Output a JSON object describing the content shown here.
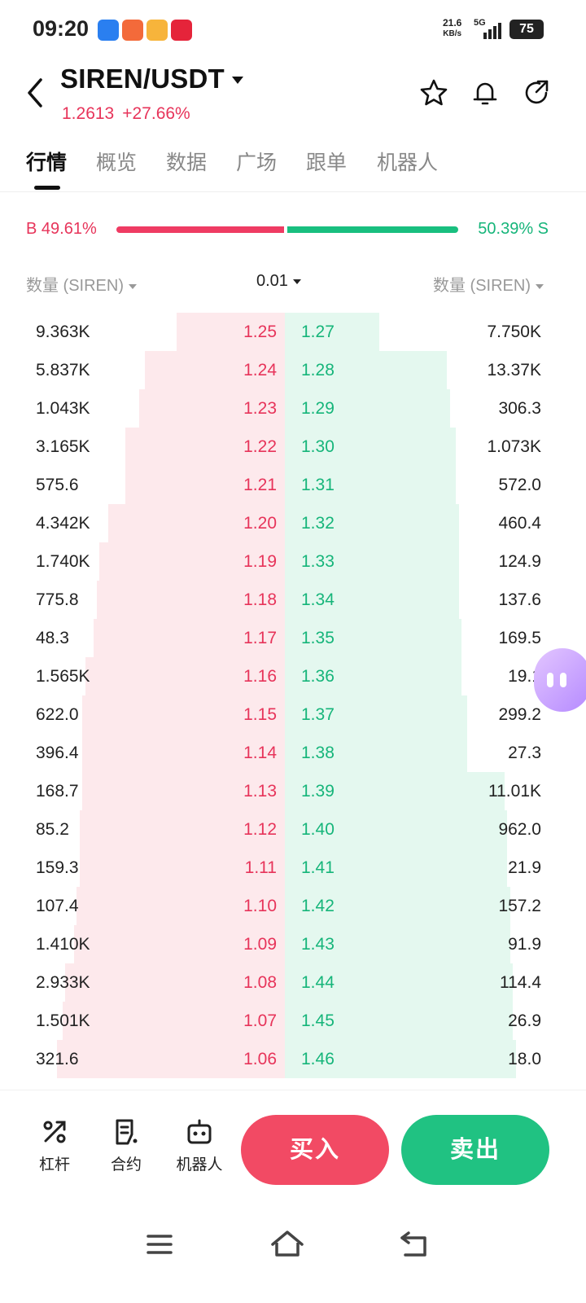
{
  "status_bar": {
    "time": "09:20",
    "net_speed_value": "21.6",
    "net_speed_unit": "KB/s",
    "network": "5G",
    "battery": "75"
  },
  "header": {
    "pair": "SIREN/USDT",
    "last_price": "1.2613",
    "change": "+27.66%"
  },
  "tabs": [
    {
      "label": "行情",
      "active": true
    },
    {
      "label": "概览",
      "active": false
    },
    {
      "label": "数据",
      "active": false
    },
    {
      "label": "广场",
      "active": false
    },
    {
      "label": "跟单",
      "active": false
    },
    {
      "label": "机器人",
      "active": false
    }
  ],
  "ratio": {
    "buy_label": "B 49.61%",
    "sell_label": "50.39% S",
    "buy_percent": 49.61,
    "sell_percent": 50.39
  },
  "columns": {
    "bid_qty": "数量 (SIREN)",
    "precision": "0.01",
    "ask_qty": "数量 (SIREN)"
  },
  "order_book": {
    "rows": [
      {
        "bid_qty": "9.363K",
        "bid_price": "1.25",
        "ask_price": "1.27",
        "ask_qty": "7.750K",
        "bid_depth": 0.38,
        "ask_depth": 0.33
      },
      {
        "bid_qty": "5.837K",
        "bid_price": "1.24",
        "ask_price": "1.28",
        "ask_qty": "13.37K",
        "bid_depth": 0.49,
        "ask_depth": 0.57
      },
      {
        "bid_qty": "1.043K",
        "bid_price": "1.23",
        "ask_price": "1.29",
        "ask_qty": "306.3",
        "bid_depth": 0.51,
        "ask_depth": 0.58
      },
      {
        "bid_qty": "3.165K",
        "bid_price": "1.22",
        "ask_price": "1.30",
        "ask_qty": "1.073K",
        "bid_depth": 0.56,
        "ask_depth": 0.6
      },
      {
        "bid_qty": "575.6",
        "bid_price": "1.21",
        "ask_price": "1.31",
        "ask_qty": "572.0",
        "bid_depth": 0.56,
        "ask_depth": 0.6
      },
      {
        "bid_qty": "4.342K",
        "bid_price": "1.20",
        "ask_price": "1.32",
        "ask_qty": "460.4",
        "bid_depth": 0.62,
        "ask_depth": 0.61
      },
      {
        "bid_qty": "1.740K",
        "bid_price": "1.19",
        "ask_price": "1.33",
        "ask_qty": "124.9",
        "bid_depth": 0.65,
        "ask_depth": 0.61
      },
      {
        "bid_qty": "775.8",
        "bid_price": "1.18",
        "ask_price": "1.34",
        "ask_qty": "137.6",
        "bid_depth": 0.66,
        "ask_depth": 0.61
      },
      {
        "bid_qty": "48.3",
        "bid_price": "1.17",
        "ask_price": "1.35",
        "ask_qty": "169.5",
        "bid_depth": 0.67,
        "ask_depth": 0.62
      },
      {
        "bid_qty": "1.565K",
        "bid_price": "1.16",
        "ask_price": "1.36",
        "ask_qty": "19.1",
        "bid_depth": 0.7,
        "ask_depth": 0.62
      },
      {
        "bid_qty": "622.0",
        "bid_price": "1.15",
        "ask_price": "1.37",
        "ask_qty": "299.2",
        "bid_depth": 0.71,
        "ask_depth": 0.64
      },
      {
        "bid_qty": "396.4",
        "bid_price": "1.14",
        "ask_price": "1.38",
        "ask_qty": "27.3",
        "bid_depth": 0.71,
        "ask_depth": 0.64
      },
      {
        "bid_qty": "168.7",
        "bid_price": "1.13",
        "ask_price": "1.39",
        "ask_qty": "11.01K",
        "bid_depth": 0.71,
        "ask_depth": 0.77
      },
      {
        "bid_qty": "85.2",
        "bid_price": "1.12",
        "ask_price": "1.40",
        "ask_qty": "962.0",
        "bid_depth": 0.72,
        "ask_depth": 0.78
      },
      {
        "bid_qty": "159.3",
        "bid_price": "1.11",
        "ask_price": "1.41",
        "ask_qty": "21.9",
        "bid_depth": 0.72,
        "ask_depth": 0.78
      },
      {
        "bid_qty": "107.4",
        "bid_price": "1.10",
        "ask_price": "1.42",
        "ask_qty": "157.2",
        "bid_depth": 0.73,
        "ask_depth": 0.79
      },
      {
        "bid_qty": "1.410K",
        "bid_price": "1.09",
        "ask_price": "1.43",
        "ask_qty": "91.9",
        "bid_depth": 0.74,
        "ask_depth": 0.79
      },
      {
        "bid_qty": "2.933K",
        "bid_price": "1.08",
        "ask_price": "1.44",
        "ask_qty": "114.4",
        "bid_depth": 0.77,
        "ask_depth": 0.8
      },
      {
        "bid_qty": "1.501K",
        "bid_price": "1.07",
        "ask_price": "1.45",
        "ask_qty": "26.9",
        "bid_depth": 0.78,
        "ask_depth": 0.8
      },
      {
        "bid_qty": "321.6",
        "bid_price": "1.06",
        "ask_price": "1.46",
        "ask_qty": "18.0",
        "bid_depth": 0.8,
        "ask_depth": 0.81
      }
    ]
  },
  "bottom_bar": {
    "leverage_label": "杠杆",
    "contract_label": "合约",
    "bot_label": "机器人",
    "buy_label": "买入",
    "sell_label": "卖出"
  },
  "colors": {
    "bid": "#e7345a",
    "ask": "#16b57a",
    "buy_button": "#f24a64",
    "sell_button": "#20c282"
  }
}
